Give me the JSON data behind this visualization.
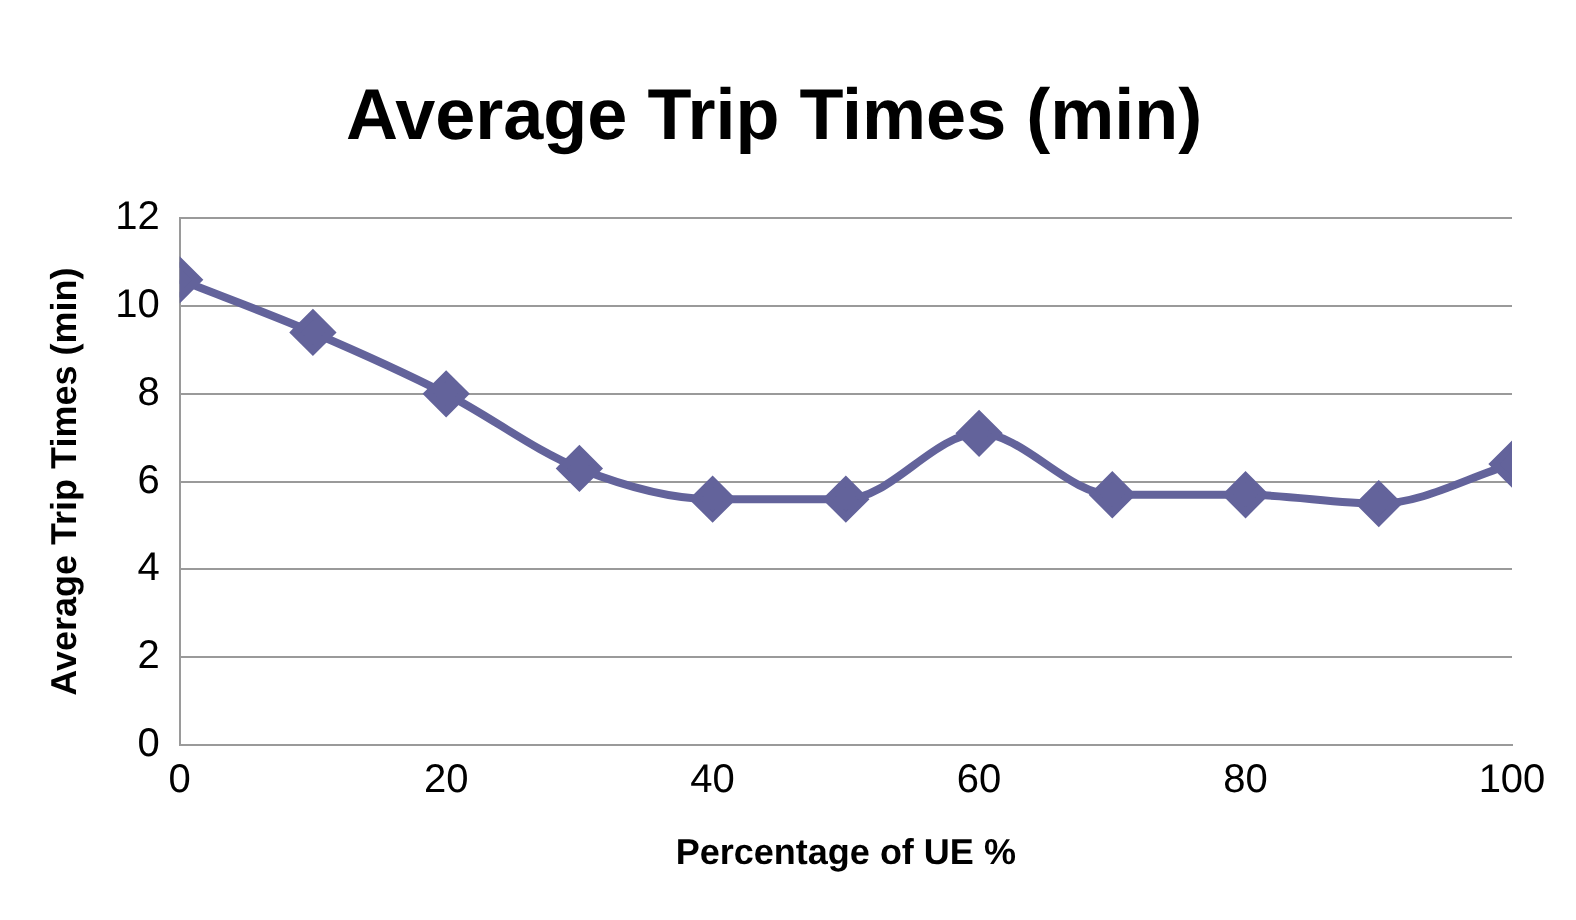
{
  "chart_data": {
    "type": "line",
    "title": "Average Trip Times (min)",
    "xlabel": "Percentage of UE %",
    "ylabel": "Average Trip Times (min)",
    "x": [
      0,
      10,
      20,
      30,
      40,
      50,
      60,
      70,
      80,
      90,
      100
    ],
    "series": [
      {
        "color": "#63639b",
        "values": [
          10.6,
          9.4,
          8.0,
          6.3,
          5.6,
          5.6,
          7.1,
          5.7,
          5.7,
          5.5,
          6.4
        ]
      }
    ],
    "xlim": [
      0,
      100
    ],
    "xticks": [
      0,
      20,
      40,
      60,
      80,
      100
    ],
    "ylim": [
      0,
      12
    ],
    "yticks": [
      0,
      2,
      4,
      6,
      8,
      10,
      12
    ],
    "grid": "y",
    "legend": false,
    "marker": "diamond",
    "line_style": "solid"
  }
}
